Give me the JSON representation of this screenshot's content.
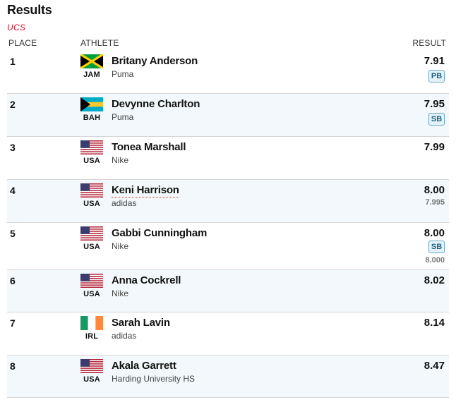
{
  "header": {
    "title": "Results",
    "subtitle": "UCS"
  },
  "columns": {
    "place": "PLACE",
    "athlete": "ATHLETE",
    "result": "RESULT"
  },
  "results": [
    {
      "place": "1",
      "country": "JAM",
      "flag": "jamaica",
      "name": "Britany Anderson",
      "team": "Puma",
      "result": "7.91",
      "badge": "PB",
      "sub_result": ""
    },
    {
      "place": "2",
      "country": "BAH",
      "flag": "bahamas",
      "name": "Devynne Charlton",
      "team": "Puma",
      "result": "7.95",
      "badge": "SB",
      "sub_result": ""
    },
    {
      "place": "3",
      "country": "USA",
      "flag": "usa",
      "name": "Tonea Marshall",
      "team": "Nike",
      "result": "7.99",
      "badge": "",
      "sub_result": ""
    },
    {
      "place": "4",
      "country": "USA",
      "flag": "usa",
      "name": "Keni Harrison",
      "team": "adidas",
      "result": "8.00",
      "badge": "",
      "sub_result": "7.995"
    },
    {
      "place": "5",
      "country": "USA",
      "flag": "usa",
      "name": "Gabbi Cunningham",
      "team": "Nike",
      "result": "8.00",
      "badge": "SB",
      "sub_result": "8.000"
    },
    {
      "place": "6",
      "country": "USA",
      "flag": "usa",
      "name": "Anna Cockrell",
      "team": "Nike",
      "result": "8.02",
      "badge": "",
      "sub_result": ""
    },
    {
      "place": "7",
      "country": "IRL",
      "flag": "ireland",
      "name": "Sarah Lavin",
      "team": "adidas",
      "result": "8.14",
      "badge": "",
      "sub_result": ""
    },
    {
      "place": "8",
      "country": "USA",
      "flag": "usa",
      "name": "Akala Garrett",
      "team": "Harding University HS",
      "result": "8.47",
      "badge": "",
      "sub_result": ""
    }
  ],
  "colors": {
    "accent_red": "#d3112a",
    "row_alt_bg": "#f2f8fb",
    "badge_border": "#6aa8c8",
    "badge_bg": "#e3f1f8"
  }
}
